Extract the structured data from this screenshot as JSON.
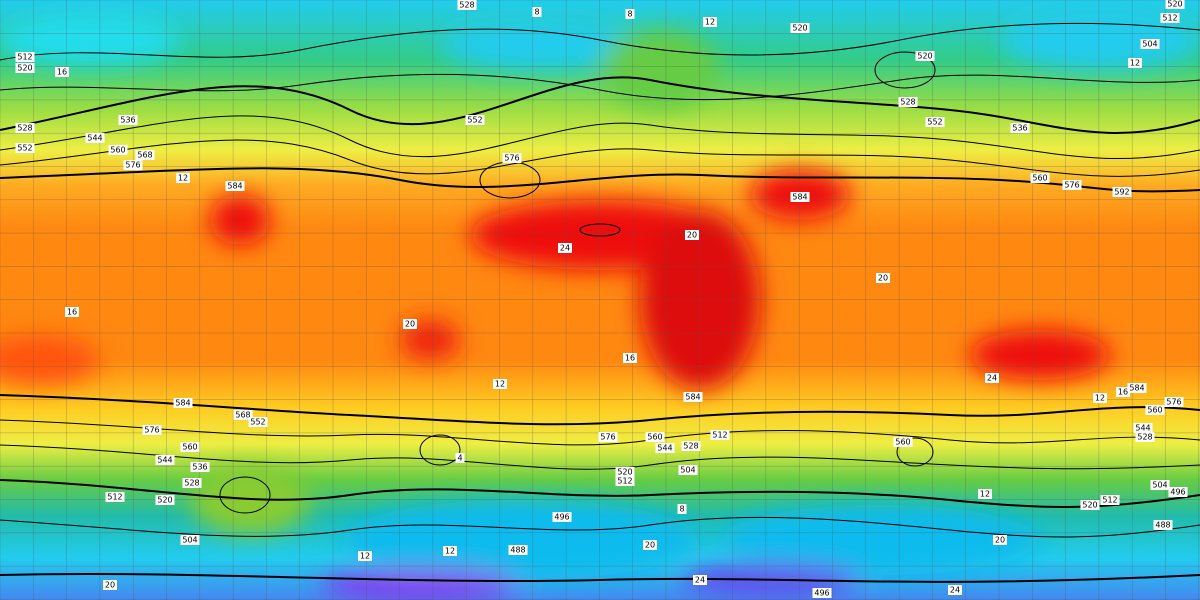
{
  "contour_labels": [
    "528",
    "8",
    "8",
    "12",
    "520",
    "520",
    "512",
    "504",
    "12",
    "512",
    "520",
    "16",
    "528",
    "536",
    "544",
    "552",
    "560",
    "568",
    "576",
    "12",
    "584",
    "552",
    "576",
    "520",
    "528",
    "552",
    "536",
    "560",
    "576",
    "592",
    "584",
    "20",
    "24",
    "20",
    "16",
    "20",
    "12",
    "16",
    "584",
    "24",
    "584",
    "12",
    "16",
    "576",
    "560",
    "544",
    "528",
    "584",
    "576",
    "560",
    "544",
    "536",
    "528",
    "520",
    "512",
    "504",
    "568",
    "552",
    "576",
    "560",
    "544",
    "528",
    "512",
    "520",
    "512",
    "504",
    "8",
    "560",
    "4",
    "496",
    "488",
    "12",
    "12",
    "20",
    "20",
    "24",
    "24",
    "496",
    "20",
    "488",
    "496",
    "504",
    "512",
    "520",
    "12"
  ]
}
